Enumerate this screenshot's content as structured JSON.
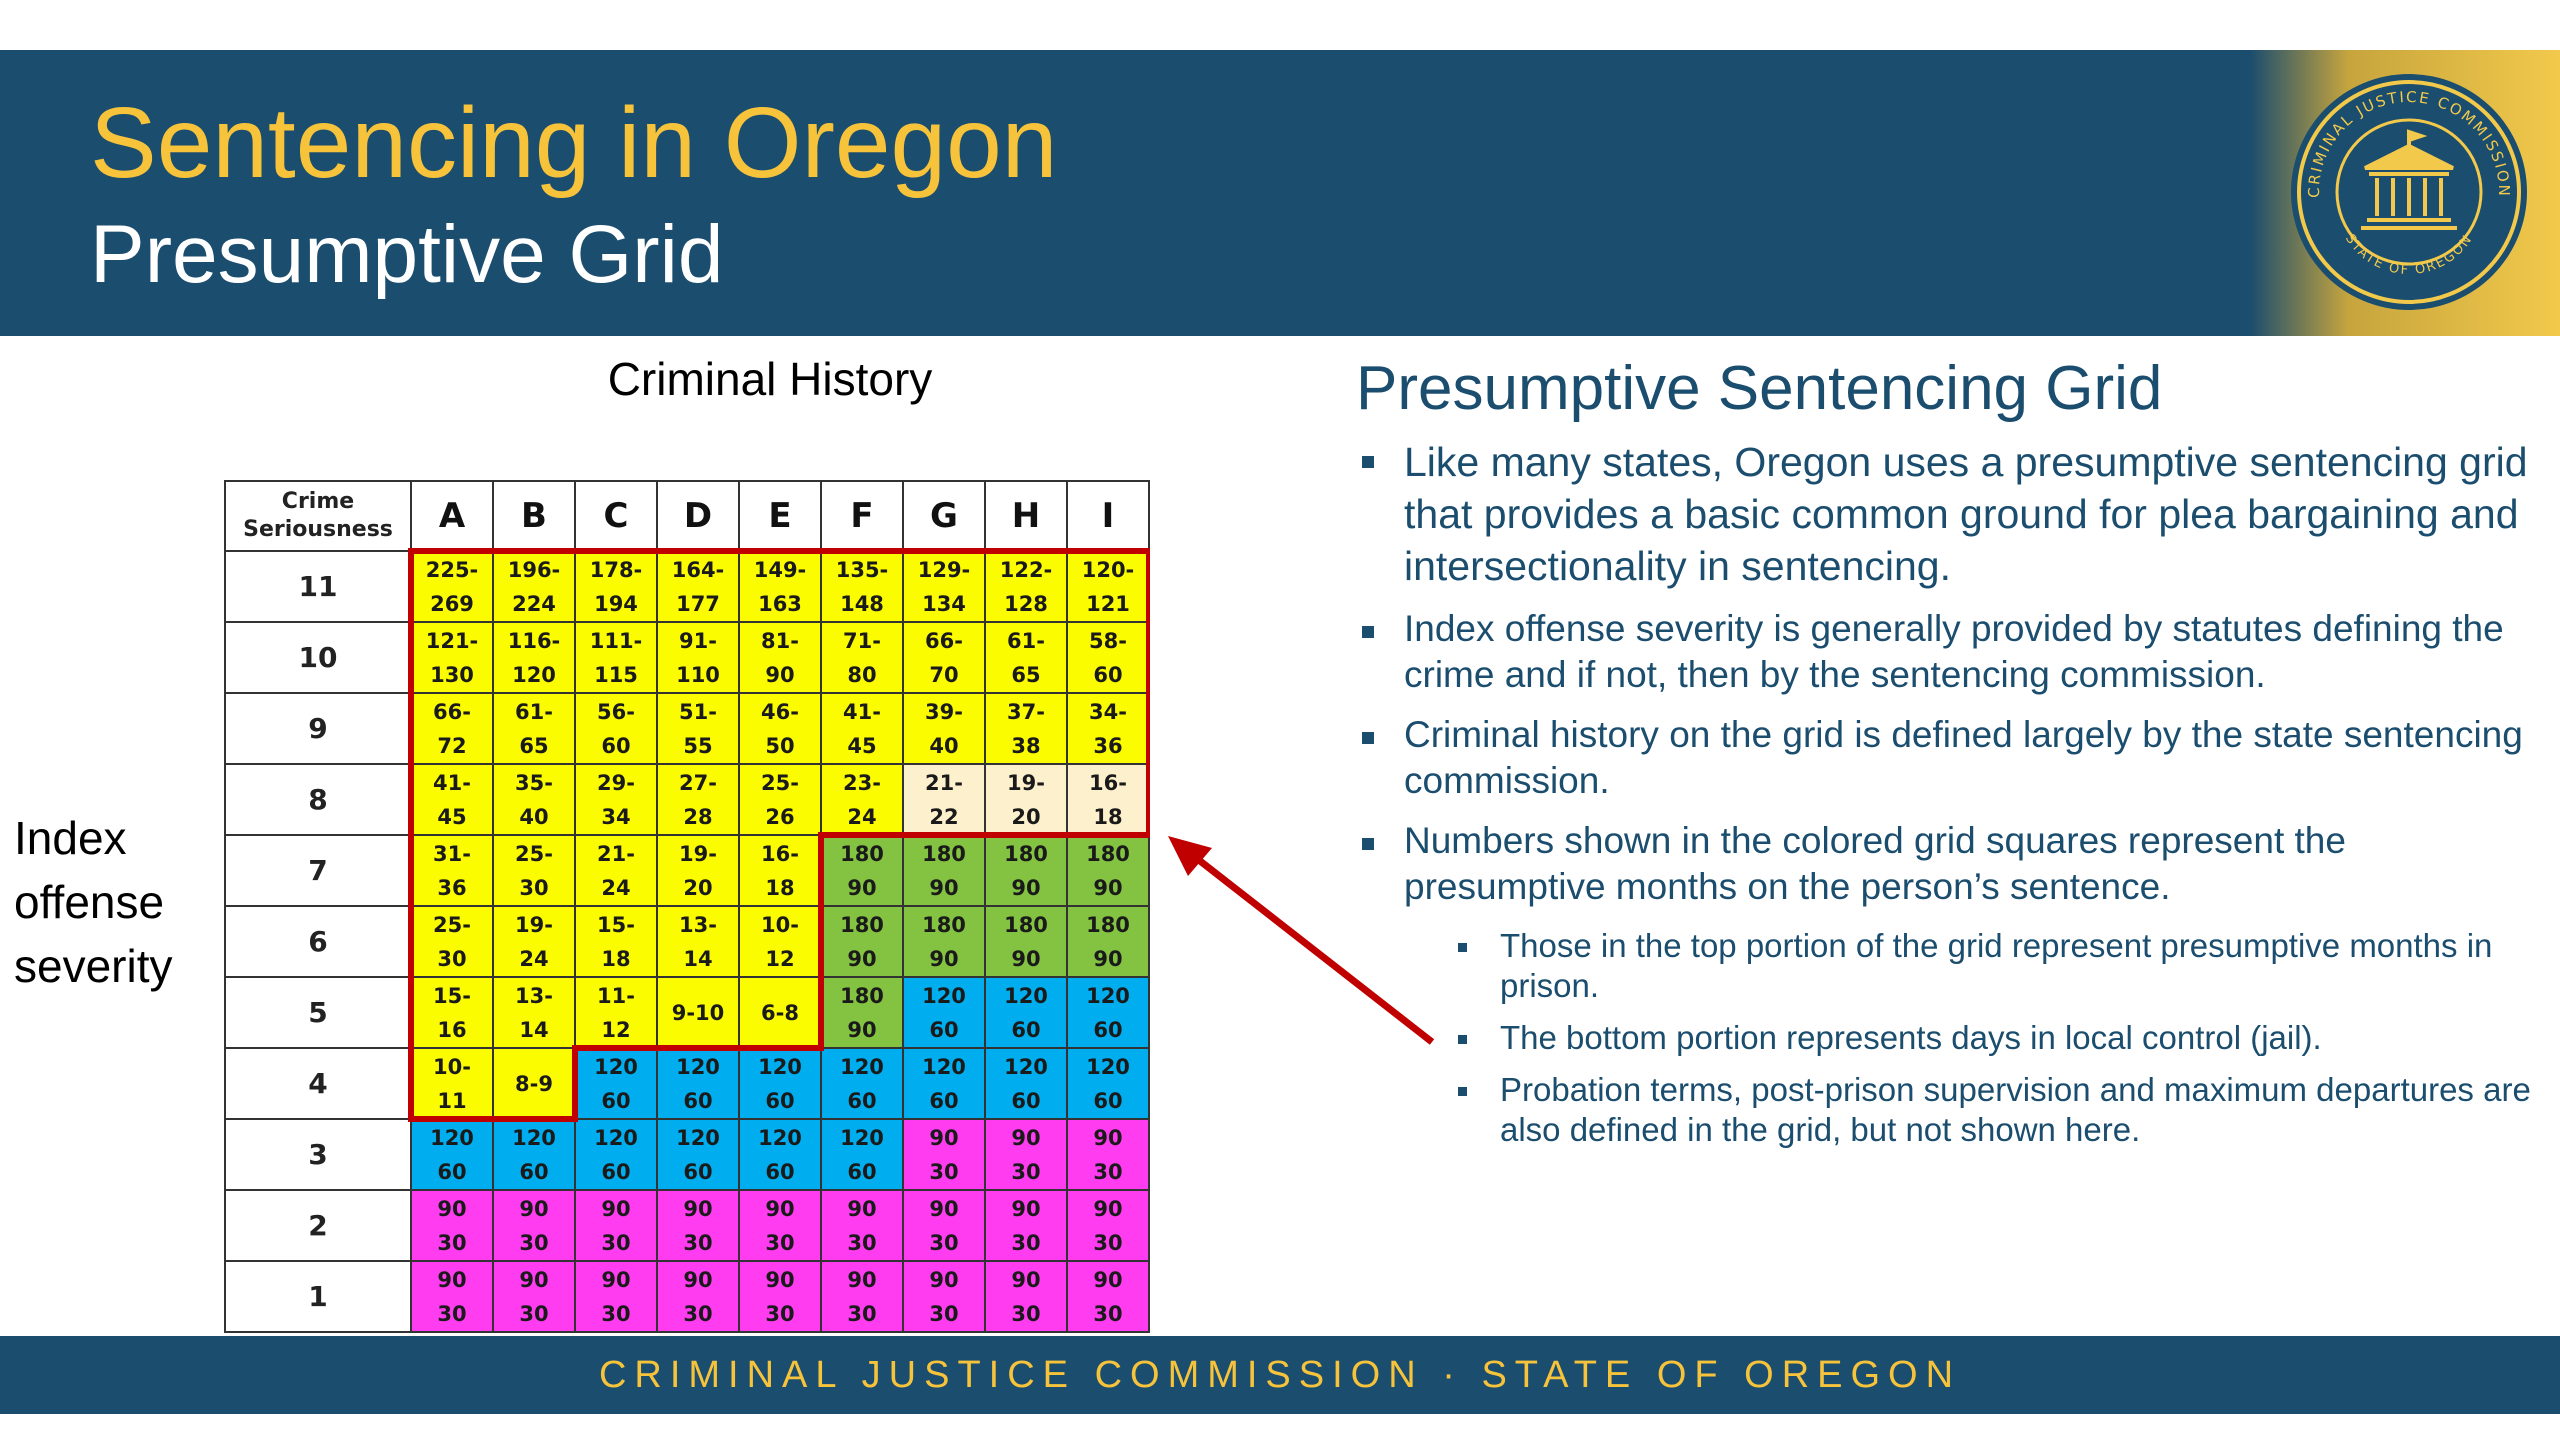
{
  "header": {
    "title": "Sentencing in Oregon",
    "subtitle": "Presumptive Grid",
    "seal": {
      "top_text": "CRIMINAL JUSTICE COMMISSION",
      "bottom_text": "STATE OF OREGON"
    }
  },
  "grid": {
    "column_title": "Criminal History",
    "row_title": [
      "Index",
      "offense",
      "severity"
    ],
    "corner_label": [
      "Crime",
      "Seriousness"
    ],
    "columns": [
      "A",
      "B",
      "C",
      "D",
      "E",
      "F",
      "G",
      "H",
      "I"
    ],
    "colors": {
      "yellow": "#fcfc00",
      "cream": "#fdf0cd",
      "green": "#83c341",
      "blue": "#00aeef",
      "magenta": "#ff3cf0",
      "prison_border": "#c00000",
      "arrow": "#c00000"
    },
    "rows": [
      {
        "level": "11",
        "cells": [
          {
            "top": "225-",
            "bottom": "269",
            "color": "yellow"
          },
          {
            "top": "196-",
            "bottom": "224",
            "color": "yellow"
          },
          {
            "top": "178-",
            "bottom": "194",
            "color": "yellow"
          },
          {
            "top": "164-",
            "bottom": "177",
            "color": "yellow"
          },
          {
            "top": "149-",
            "bottom": "163",
            "color": "yellow"
          },
          {
            "top": "135-",
            "bottom": "148",
            "color": "yellow"
          },
          {
            "top": "129-",
            "bottom": "134",
            "color": "yellow"
          },
          {
            "top": "122-",
            "bottom": "128",
            "color": "yellow"
          },
          {
            "top": "120-",
            "bottom": "121",
            "color": "yellow"
          }
        ]
      },
      {
        "level": "10",
        "cells": [
          {
            "top": "121-",
            "bottom": "130",
            "color": "yellow"
          },
          {
            "top": "116-",
            "bottom": "120",
            "color": "yellow"
          },
          {
            "top": "111-",
            "bottom": "115",
            "color": "yellow"
          },
          {
            "top": "91-",
            "bottom": "110",
            "color": "yellow"
          },
          {
            "top": "81-",
            "bottom": "90",
            "color": "yellow"
          },
          {
            "top": "71-",
            "bottom": "80",
            "color": "yellow"
          },
          {
            "top": "66-",
            "bottom": "70",
            "color": "yellow"
          },
          {
            "top": "61-",
            "bottom": "65",
            "color": "yellow"
          },
          {
            "top": "58-",
            "bottom": "60",
            "color": "yellow"
          }
        ]
      },
      {
        "level": "9",
        "cells": [
          {
            "top": "66-",
            "bottom": "72",
            "color": "yellow"
          },
          {
            "top": "61-",
            "bottom": "65",
            "color": "yellow"
          },
          {
            "top": "56-",
            "bottom": "60",
            "color": "yellow"
          },
          {
            "top": "51-",
            "bottom": "55",
            "color": "yellow"
          },
          {
            "top": "46-",
            "bottom": "50",
            "color": "yellow"
          },
          {
            "top": "41-",
            "bottom": "45",
            "color": "yellow"
          },
          {
            "top": "39-",
            "bottom": "40",
            "color": "yellow"
          },
          {
            "top": "37-",
            "bottom": "38",
            "color": "yellow"
          },
          {
            "top": "34-",
            "bottom": "36",
            "color": "yellow"
          }
        ]
      },
      {
        "level": "8",
        "cells": [
          {
            "top": "41-",
            "bottom": "45",
            "color": "yellow"
          },
          {
            "top": "35-",
            "bottom": "40",
            "color": "yellow"
          },
          {
            "top": "29-",
            "bottom": "34",
            "color": "yellow"
          },
          {
            "top": "27-",
            "bottom": "28",
            "color": "yellow"
          },
          {
            "top": "25-",
            "bottom": "26",
            "color": "yellow"
          },
          {
            "top": "23-",
            "bottom": "24",
            "color": "yellow"
          },
          {
            "top": "21-",
            "bottom": "22",
            "color": "cream"
          },
          {
            "top": "19-",
            "bottom": "20",
            "color": "cream"
          },
          {
            "top": "16-",
            "bottom": "18",
            "color": "cream"
          }
        ]
      },
      {
        "level": "7",
        "cells": [
          {
            "top": "31-",
            "bottom": "36",
            "color": "yellow"
          },
          {
            "top": "25-",
            "bottom": "30",
            "color": "yellow"
          },
          {
            "top": "21-",
            "bottom": "24",
            "color": "yellow"
          },
          {
            "top": "19-",
            "bottom": "20",
            "color": "yellow"
          },
          {
            "top": "16-",
            "bottom": "18",
            "color": "yellow"
          },
          {
            "top": "180",
            "bottom": "90",
            "color": "green"
          },
          {
            "top": "180",
            "bottom": "90",
            "color": "green"
          },
          {
            "top": "180",
            "bottom": "90",
            "color": "green"
          },
          {
            "top": "180",
            "bottom": "90",
            "color": "green"
          }
        ]
      },
      {
        "level": "6",
        "cells": [
          {
            "top": "25-",
            "bottom": "30",
            "color": "yellow"
          },
          {
            "top": "19-",
            "bottom": "24",
            "color": "yellow"
          },
          {
            "top": "15-",
            "bottom": "18",
            "color": "yellow"
          },
          {
            "top": "13-",
            "bottom": "14",
            "color": "yellow"
          },
          {
            "top": "10-",
            "bottom": "12",
            "color": "yellow"
          },
          {
            "top": "180",
            "bottom": "90",
            "color": "green"
          },
          {
            "top": "180",
            "bottom": "90",
            "color": "green"
          },
          {
            "top": "180",
            "bottom": "90",
            "color": "green"
          },
          {
            "top": "180",
            "bottom": "90",
            "color": "green"
          }
        ]
      },
      {
        "level": "5",
        "cells": [
          {
            "top": "15-",
            "bottom": "16",
            "color": "yellow"
          },
          {
            "top": "13-",
            "bottom": "14",
            "color": "yellow"
          },
          {
            "top": "11-",
            "bottom": "12",
            "color": "yellow"
          },
          {
            "top": "9-10",
            "bottom": "",
            "color": "yellow"
          },
          {
            "top": "6-8",
            "bottom": "",
            "color": "yellow"
          },
          {
            "top": "180",
            "bottom": "90",
            "color": "green"
          },
          {
            "top": "120",
            "bottom": "60",
            "color": "blue"
          },
          {
            "top": "120",
            "bottom": "60",
            "color": "blue"
          },
          {
            "top": "120",
            "bottom": "60",
            "color": "blue"
          }
        ]
      },
      {
        "level": "4",
        "cells": [
          {
            "top": "10-",
            "bottom": "11",
            "color": "yellow"
          },
          {
            "top": "8-9",
            "bottom": "",
            "color": "yellow"
          },
          {
            "top": "120",
            "bottom": "60",
            "color": "blue"
          },
          {
            "top": "120",
            "bottom": "60",
            "color": "blue"
          },
          {
            "top": "120",
            "bottom": "60",
            "color": "blue"
          },
          {
            "top": "120",
            "bottom": "60",
            "color": "blue"
          },
          {
            "top": "120",
            "bottom": "60",
            "color": "blue"
          },
          {
            "top": "120",
            "bottom": "60",
            "color": "blue"
          },
          {
            "top": "120",
            "bottom": "60",
            "color": "blue"
          }
        ]
      },
      {
        "level": "3",
        "cells": [
          {
            "top": "120",
            "bottom": "60",
            "color": "blue"
          },
          {
            "top": "120",
            "bottom": "60",
            "color": "blue"
          },
          {
            "top": "120",
            "bottom": "60",
            "color": "blue"
          },
          {
            "top": "120",
            "bottom": "60",
            "color": "blue"
          },
          {
            "top": "120",
            "bottom": "60",
            "color": "blue"
          },
          {
            "top": "120",
            "bottom": "60",
            "color": "blue"
          },
          {
            "top": "90",
            "bottom": "30",
            "color": "magenta"
          },
          {
            "top": "90",
            "bottom": "30",
            "color": "magenta"
          },
          {
            "top": "90",
            "bottom": "30",
            "color": "magenta"
          }
        ]
      },
      {
        "level": "2",
        "cells": [
          {
            "top": "90",
            "bottom": "30",
            "color": "magenta"
          },
          {
            "top": "90",
            "bottom": "30",
            "color": "magenta"
          },
          {
            "top": "90",
            "bottom": "30",
            "color": "magenta"
          },
          {
            "top": "90",
            "bottom": "30",
            "color": "magenta"
          },
          {
            "top": "90",
            "bottom": "30",
            "color": "magenta"
          },
          {
            "top": "90",
            "bottom": "30",
            "color": "magenta"
          },
          {
            "top": "90",
            "bottom": "30",
            "color": "magenta"
          },
          {
            "top": "90",
            "bottom": "30",
            "color": "magenta"
          },
          {
            "top": "90",
            "bottom": "30",
            "color": "magenta"
          }
        ]
      },
      {
        "level": "1",
        "cells": [
          {
            "top": "90",
            "bottom": "30",
            "color": "magenta"
          },
          {
            "top": "90",
            "bottom": "30",
            "color": "magenta"
          },
          {
            "top": "90",
            "bottom": "30",
            "color": "magenta"
          },
          {
            "top": "90",
            "bottom": "30",
            "color": "magenta"
          },
          {
            "top": "90",
            "bottom": "30",
            "color": "magenta"
          },
          {
            "top": "90",
            "bottom": "30",
            "color": "magenta"
          },
          {
            "top": "90",
            "bottom": "30",
            "color": "magenta"
          },
          {
            "top": "90",
            "bottom": "30",
            "color": "magenta"
          },
          {
            "top": "90",
            "bottom": "30",
            "color": "magenta"
          }
        ]
      }
    ]
  },
  "panel": {
    "title": "Presumptive Sentencing Grid",
    "bullets": [
      "Like many states, Oregon uses a presumptive sentencing grid that provides a basic common ground for plea bargaining and intersectionality in sentencing.",
      "Index offense severity is generally provided by statutes defining the crime and if not, then by the sentencing commission.",
      "Criminal history on the grid is defined largely by the state sentencing commission.",
      "Numbers shown in the colored grid squares represent the presumptive months on the person’s sentence."
    ],
    "sub_bullets": [
      "Those in the top portion of the grid represent presumptive months in prison.",
      "The bottom portion represents days in local control (jail).",
      "Probation terms, post-prison supervision and maximum departures are also defined in the grid, but not shown here."
    ]
  },
  "footer": {
    "text": "CRIMINAL JUSTICE COMMISSION · STATE OF OREGON"
  }
}
